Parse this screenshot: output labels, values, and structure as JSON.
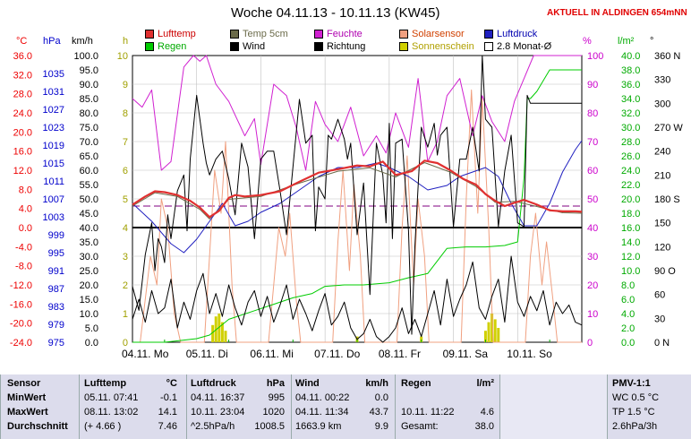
{
  "window": {
    "title": "Woche 04.11.13 - 10.11.13 (KW45)",
    "live_label": "AKTUELL IN ALDINGEN 654mNN"
  },
  "legend": [
    {
      "label": "Lufttemp",
      "color": "#e03030",
      "text_color": "#cc0000"
    },
    {
      "label": "Temp 5cm",
      "color": "#6b6b4a",
      "text_color": "#6b6b4a"
    },
    {
      "label": "Feuchte",
      "color": "#d020d0",
      "text_color": "#b000b0"
    },
    {
      "label": "Solarsensor",
      "color": "#f0a080",
      "text_color": "#d04000"
    },
    {
      "label": "Luftdruck",
      "color": "#2020c0",
      "text_color": "#0000b0"
    },
    {
      "label": "Regen",
      "color": "#00cc00",
      "text_color": "#00aa00"
    },
    {
      "label": "Wind",
      "color": "#000000",
      "text_color": "#000000"
    },
    {
      "label": "Richtung",
      "color": "#000000",
      "text_color": "#000000"
    },
    {
      "label": "Sonnenschein",
      "color": "#d0d000",
      "text_color": "#b0a000"
    },
    {
      "label": "2.8 Monat-Ø",
      "color": "#ffffff",
      "text_color": "#000000"
    }
  ],
  "units": {
    "temp": "°C",
    "pressure": "hPa",
    "wind": "km/h",
    "sun": "h",
    "humidity": "%",
    "rain": "l/m²",
    "direction": "°"
  },
  "chart_data": {
    "type": "line",
    "xlabel": "",
    "x_ticks": [
      "04.11. Mo",
      "05.11. Di",
      "06.11. Mi",
      "07.11. Do",
      "08.11. Fr",
      "09.11. Sa",
      "10.11. So"
    ],
    "axes": {
      "temp": {
        "ticks": [
          "36.0",
          "32.0",
          "28.0",
          "24.0",
          "20.0",
          "16.0",
          "12.0",
          "8.0",
          "4.0",
          "0.0",
          "-4.0",
          "-8.0",
          "-12.0",
          "-16.0",
          "-20.0",
          "-24.0"
        ],
        "range": [
          -24,
          36
        ],
        "color": "#ee0000"
      },
      "pressure": {
        "ticks": [
          "",
          "1035",
          "1031",
          "1027",
          "1023",
          "1019",
          "1015",
          "1011",
          "1007",
          "1003",
          "999",
          "995",
          "991",
          "987",
          "983",
          "979",
          "975"
        ],
        "range": [
          975,
          1039
        ],
        "color": "#0000cc"
      },
      "wind": {
        "ticks": [
          "100.0",
          "95.0",
          "90.0",
          "85.0",
          "80.0",
          "75.0",
          "70.0",
          "65.0",
          "60.0",
          "55.0",
          "50.0",
          "45.0",
          "40.0",
          "35.0",
          "30.0",
          "25.0",
          "20.0",
          "15.0",
          "10.0",
          "5.0",
          "0.0"
        ],
        "range": [
          0,
          100
        ],
        "color": "#000000"
      },
      "sun": {
        "ticks": [
          "10",
          "9",
          "8",
          "7",
          "6",
          "5",
          "4",
          "3",
          "2",
          "1",
          "0"
        ],
        "range": [
          0,
          10
        ],
        "color": "#a0a000"
      },
      "humidity": {
        "ticks": [
          "100",
          "90",
          "80",
          "70",
          "60",
          "50",
          "40",
          "30",
          "20",
          "10",
          "0"
        ],
        "range": [
          0,
          100
        ],
        "color": "#cc00cc"
      },
      "rain": {
        "ticks": [
          "40.0",
          "38.0",
          "36.0",
          "34.0",
          "32.0",
          "30.0",
          "28.0",
          "26.0",
          "24.0",
          "22.0",
          "20.0",
          "18.0",
          "16.0",
          "14.0",
          "12.0",
          "10.0",
          "8.0",
          "6.0",
          "4.0",
          "2.0",
          "0.0"
        ],
        "range": [
          0,
          40
        ],
        "color": "#00aa00"
      },
      "direction": {
        "ticks": [
          "360 N",
          "330",
          "300",
          "270 W",
          "240",
          "210",
          "180 S",
          "150",
          "120",
          "90 O",
          "60",
          "30",
          "0 N"
        ],
        "range": [
          0,
          360
        ],
        "color": "#000000"
      }
    },
    "reference_line": {
      "label": "2.8 Monat-Ø",
      "temp": 4.5
    },
    "zero_line": {
      "temp": 0
    },
    "series": [
      {
        "name": "Lufttemp",
        "axis": "temp",
        "color": "#e03030",
        "width": 2.2,
        "x": [
          0,
          0.2,
          0.35,
          0.5,
          0.7,
          0.9,
          1.05,
          1.2,
          1.35,
          1.5,
          1.6,
          1.75,
          2.0,
          2.3,
          2.6,
          2.9,
          3.2,
          3.5,
          3.7,
          3.9,
          4.1,
          4.35,
          4.55,
          4.75,
          4.95,
          5.15,
          5.35,
          5.5,
          5.65,
          5.8,
          5.95,
          6.1,
          6.3,
          6.5,
          6.7,
          6.9,
          7.0
        ],
        "y": [
          4.8,
          6.5,
          7.6,
          7.4,
          6.8,
          5.6,
          4.2,
          2.2,
          3.5,
          6.2,
          6.8,
          6.5,
          6.8,
          7.6,
          9.6,
          11.5,
          12.2,
          13.0,
          12.8,
          13.8,
          11.0,
          11.8,
          14.0,
          13.5,
          12.0,
          10.2,
          9.0,
          7.0,
          5.6,
          4.5,
          5.2,
          5.8,
          4.8,
          3.6,
          3.4,
          3.4,
          3.3
        ]
      },
      {
        "name": "Temp 5cm",
        "axis": "temp",
        "color": "#6b6b4a",
        "width": 1,
        "x": [
          0,
          0.35,
          0.7,
          1.05,
          1.2,
          1.5,
          2.0,
          2.6,
          3.2,
          3.7,
          4.1,
          4.55,
          4.95,
          5.35,
          5.65,
          5.95,
          6.3,
          6.7,
          7.0
        ],
        "y": [
          4.5,
          7.3,
          6.5,
          3.8,
          1.8,
          5.9,
          6.5,
          9.3,
          11.8,
          12.5,
          10.6,
          13.6,
          11.6,
          8.6,
          5.3,
          5.5,
          4.4,
          3.1,
          3.0
        ]
      },
      {
        "name": "Feuchte",
        "axis": "humidity",
        "color": "#d020d0",
        "width": 1,
        "x": [
          0,
          0.15,
          0.3,
          0.45,
          0.6,
          0.8,
          0.95,
          1.05,
          1.15,
          1.3,
          1.5,
          1.75,
          1.9,
          2.0,
          2.2,
          2.4,
          2.55,
          2.7,
          2.85,
          3.0,
          3.2,
          3.4,
          3.6,
          3.8,
          3.95,
          4.1,
          4.3,
          4.45,
          4.6,
          4.75,
          4.9,
          5.1,
          5.3,
          5.45,
          5.6,
          5.8,
          5.95,
          6.1,
          6.25,
          6.4,
          6.6,
          6.8,
          7.0
        ],
        "y": [
          85,
          82,
          88,
          60,
          63,
          96,
          100,
          98,
          100,
          90,
          84,
          72,
          78,
          62,
          90,
          86,
          75,
          60,
          84,
          76,
          70,
          82,
          65,
          72,
          66,
          80,
          68,
          92,
          63,
          70,
          86,
          92,
          72,
          86,
          77,
          70,
          84,
          92,
          100,
          100,
          100,
          100,
          100
        ]
      },
      {
        "name": "Luftdruck",
        "axis": "pressure",
        "color": "#2020c0",
        "width": 1,
        "x": [
          0,
          0.3,
          0.6,
          0.8,
          1.0,
          1.2,
          1.4,
          1.6,
          1.8,
          2.0,
          2.3,
          2.6,
          2.9,
          3.2,
          3.5,
          3.8,
          4.0,
          4.3,
          4.6,
          4.9,
          5.1,
          5.3,
          5.5,
          5.7,
          5.9,
          6.1,
          6.3,
          6.5,
          6.7,
          6.9,
          7.0
        ],
        "y": [
          1006,
          1002,
          997,
          995,
          998,
          1002,
          1006,
          1001,
          1002,
          1004,
          1006,
          1009,
          1012,
          1014,
          1014,
          1015,
          1014,
          1012,
          1009,
          1010,
          1012,
          1013,
          1014,
          1012,
          1006,
          1001,
          1001,
          1006,
          1013,
          1018,
          1020
        ]
      },
      {
        "name": "Wind",
        "axis": "wind",
        "color": "#000000",
        "width": 1,
        "x": [
          0,
          0.1,
          0.2,
          0.3,
          0.4,
          0.5,
          0.6,
          0.7,
          0.8,
          0.9,
          1.0,
          1.1,
          1.2,
          1.3,
          1.4,
          1.5,
          1.6,
          1.7,
          1.8,
          1.9,
          2.0,
          2.1,
          2.2,
          2.3,
          2.4,
          2.5,
          2.6,
          2.7,
          2.8,
          2.9,
          3.0,
          3.1,
          3.2,
          3.3,
          3.4,
          3.5,
          3.6,
          3.7,
          3.8,
          3.9,
          4.0,
          4.1,
          4.2,
          4.3,
          4.4,
          4.5,
          4.6,
          4.7,
          4.8,
          4.9,
          5.0,
          5.1,
          5.2,
          5.3,
          5.4,
          5.5,
          5.6,
          5.7,
          5.8,
          5.9,
          6.0,
          6.1,
          6.2,
          6.3,
          6.4,
          6.5,
          6.6,
          6.7,
          6.8,
          6.9,
          7.0
        ],
        "y": [
          8,
          15,
          7,
          18,
          10,
          12,
          22,
          5,
          14,
          8,
          18,
          24,
          10,
          17,
          9,
          20,
          12,
          6,
          14,
          18,
          9,
          16,
          7,
          13,
          20,
          8,
          15,
          10,
          4,
          11,
          17,
          6,
          9,
          14,
          5,
          1,
          3,
          8,
          2,
          0,
          2,
          5,
          12,
          3,
          8,
          2,
          10,
          18,
          6,
          22,
          9,
          15,
          20,
          28,
          12,
          8,
          16,
          22,
          7,
          30,
          14,
          9,
          16,
          11,
          18,
          6,
          14,
          10,
          13,
          7,
          6
        ]
      },
      {
        "name": "Richtung",
        "axis": "direction",
        "color": "#000000",
        "width": 1,
        "x": [
          0,
          0.1,
          0.2,
          0.3,
          0.35,
          0.4,
          0.45,
          0.5,
          0.55,
          0.6,
          0.7,
          0.8,
          0.85,
          0.9,
          0.95,
          1.0,
          1.05,
          1.1,
          1.15,
          1.2,
          1.3,
          1.4,
          1.5,
          1.6,
          1.7,
          1.8,
          1.9,
          2.0,
          2.1,
          2.2,
          2.3,
          2.4,
          2.5,
          2.6,
          2.7,
          2.8,
          2.85,
          2.9,
          3.0,
          3.05,
          3.1,
          3.2,
          3.3,
          3.35,
          3.4,
          3.5,
          3.6,
          3.7,
          3.8,
          3.9,
          3.95,
          4.0,
          4.05,
          4.1,
          4.2,
          4.3,
          4.35,
          4.4,
          4.5,
          4.6,
          4.7,
          4.75,
          4.8,
          4.9,
          5.0,
          5.1,
          5.2,
          5.3,
          5.4,
          5.45,
          5.5,
          5.6,
          5.7,
          5.8,
          5.9,
          6.0,
          6.1,
          6.15,
          6.2,
          6.3,
          6.4,
          6.5,
          6.6,
          6.7,
          6.8,
          6.9,
          7.0
        ],
        "y": [
          70,
          40,
          110,
          150,
          90,
          130,
          120,
          100,
          160,
          130,
          190,
          210,
          140,
          230,
          270,
          310,
          280,
          250,
          225,
          210,
          230,
          240,
          205,
          160,
          250,
          220,
          130,
          230,
          240,
          240,
          190,
          135,
          220,
          305,
          250,
          260,
          140,
          195,
          180,
          260,
          255,
          280,
          255,
          230,
          250,
          135,
          200,
          60,
          250,
          210,
          150,
          275,
          130,
          250,
          255,
          140,
          10,
          120,
          270,
          245,
          275,
          235,
          260,
          270,
          145,
          230,
          230,
          270,
          215,
          360,
          280,
          270,
          145,
          215,
          260,
          150,
          145,
          310,
          300,
          300,
          300,
          300,
          300,
          300,
          300,
          300,
          300
        ]
      },
      {
        "name": "Solarsensor",
        "axis": "wind",
        "color": "#f0a080",
        "width": 1,
        "x": [
          0,
          0.12,
          0.2,
          0.28,
          0.38,
          0.45,
          0.55,
          0.65,
          0.75,
          0.85,
          1.0,
          1.12,
          1.2,
          1.28,
          1.38,
          1.45,
          1.55,
          1.62,
          1.75,
          1.85,
          2.0,
          2.12,
          2.2,
          2.28,
          2.38,
          2.45,
          2.55,
          2.62,
          2.75,
          2.85,
          3.0,
          3.12,
          3.2,
          3.28,
          3.38,
          3.45,
          3.55,
          3.62,
          3.75,
          3.85,
          4.0,
          4.12,
          4.2,
          4.28,
          4.38,
          4.45,
          4.55,
          4.62,
          4.75,
          4.85,
          5.0,
          5.12,
          5.2,
          5.28,
          5.38,
          5.45,
          5.55,
          5.62,
          5.75,
          5.85,
          6.0,
          6.12,
          6.2,
          6.28,
          6.38,
          6.45,
          6.55,
          6.62,
          6.75,
          6.85,
          7.0
        ],
        "y": [
          0,
          0,
          15,
          30,
          20,
          50,
          40,
          10,
          0,
          0,
          0,
          0,
          30,
          60,
          45,
          70,
          20,
          0,
          0,
          0,
          0,
          0,
          20,
          40,
          30,
          45,
          15,
          0,
          0,
          0,
          0,
          0,
          35,
          60,
          25,
          55,
          30,
          0,
          0,
          0,
          0,
          0,
          40,
          65,
          20,
          50,
          30,
          0,
          0,
          0,
          0,
          0,
          50,
          88,
          45,
          85,
          40,
          0,
          0,
          0,
          0,
          0,
          30,
          45,
          20,
          35,
          15,
          0,
          0,
          0,
          0
        ]
      },
      {
        "name": "Regen",
        "axis": "rain",
        "color": "#00cc00",
        "width": 1,
        "x": [
          0,
          0.5,
          0.8,
          1.0,
          1.2,
          1.5,
          1.9,
          2.2,
          2.5,
          2.8,
          3.0,
          3.3,
          3.6,
          4.0,
          4.3,
          4.6,
          4.9,
          5.2,
          5.5,
          5.8,
          6.0,
          6.1,
          6.15,
          6.2,
          6.3,
          6.5,
          7.0
        ],
        "y": [
          0,
          0,
          0.3,
          0.5,
          1.0,
          3.2,
          4.4,
          5.3,
          6.2,
          6.8,
          7.8,
          8.0,
          8.0,
          8.3,
          9.0,
          9.6,
          13.1,
          13.3,
          13.3,
          13.5,
          14.0,
          23.0,
          34.0,
          34.0,
          35.0,
          38.0,
          38.0
        ]
      }
    ],
    "sunshine_bars": {
      "axis": "sun",
      "color": "#d0d000",
      "x": [
        1.25,
        1.3,
        1.35,
        1.4,
        1.45,
        3.5,
        4.5,
        5.5,
        5.55,
        5.6,
        5.65,
        5.7
      ],
      "y": [
        0.6,
        0.9,
        1.0,
        0.7,
        0.4,
        0.2,
        0.2,
        0.4,
        0.7,
        1.0,
        0.8,
        0.5
      ]
    },
    "rain_markers": {
      "x": [
        0.5,
        1.5,
        2.5,
        3.5,
        4.5,
        5.5,
        6.5
      ]
    }
  },
  "stats": {
    "rows": [
      {
        "label": "Sensor",
        "temp_date": "Lufttemp",
        "temp_val": "°C",
        "press_date": "Luftdruck",
        "press_val": "hPa",
        "wind_date": "Wind",
        "wind_val": "km/h",
        "rain_date": "Regen",
        "rain_val": "l/m²",
        "pmv": "PMV-1:1"
      },
      {
        "label": "MinWert",
        "temp_date": "05.11.  07:41",
        "temp_val": "-0.1",
        "press_date": "04.11.  16:37",
        "press_val": "995",
        "wind_date": "04.11.  00:22",
        "wind_val": "0.0",
        "rain_date": "",
        "rain_val": "",
        "pmv": "WC 0.5 °C"
      },
      {
        "label": "MaxWert",
        "temp_date": "08.11.  13:02",
        "temp_val": "14.1",
        "press_date": "10.11.  23:04",
        "press_val": "1020",
        "wind_date": "04.11.  11:34",
        "wind_val": "43.7",
        "rain_date": "10.11.  11:22",
        "rain_val": "4.6",
        "pmv": "TP 1.5 °C"
      },
      {
        "label": "Durchschnitt",
        "temp_date": "(+ 4.66 )",
        "temp_val": "7.46",
        "press_date": "^2.5hPa/h",
        "press_val": "1008.5",
        "wind_date": "1663.9 km",
        "wind_val": "9.9",
        "rain_date": "Gesamt:",
        "rain_val": "38.0",
        "pmv": "2.6hPa/3h"
      }
    ]
  }
}
